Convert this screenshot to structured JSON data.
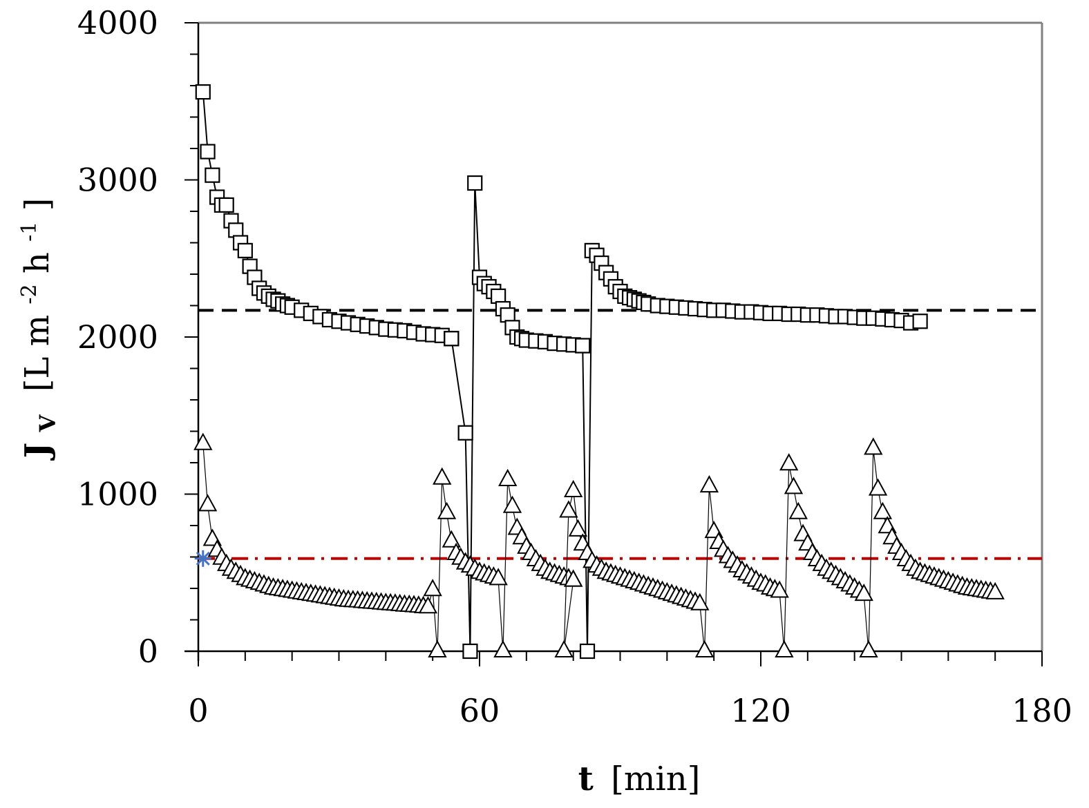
{
  "chart_data": {
    "type": "scatter",
    "title": "",
    "xlabel": {
      "symbol": "t",
      "unit": "[min]"
    },
    "ylabel": {
      "symbol": "J",
      "subscript": "V",
      "unit_open": "[L m",
      "exp1": "-2",
      "unit_mid": " h",
      "exp2": "-1",
      "unit_close": "]"
    },
    "xlim": [
      0,
      180
    ],
    "ylim": [
      0,
      4000
    ],
    "x_ticks": [
      "0",
      "60",
      "120",
      "180"
    ],
    "y_ticks": [
      "0",
      "1000",
      "2000",
      "3000",
      "4000"
    ],
    "x_tick_values": [
      0,
      60,
      120,
      180
    ],
    "y_tick_values": [
      0,
      1000,
      2000,
      3000,
      4000
    ],
    "x_minor_step": 10,
    "y_minor_step": 200,
    "reference_lines": [
      {
        "name": "dashed-line",
        "y": 2170,
        "color": "#000000",
        "style": "dashed"
      },
      {
        "name": "dash-dot-line",
        "y": 590,
        "color": "#c00000",
        "style": "dashdot"
      }
    ],
    "marker_point": {
      "name": "star-marker",
      "x": 1,
      "y": 590,
      "color": "#4472c4"
    },
    "series": [
      {
        "name": "squares",
        "marker": "square",
        "segments": [
          {
            "x": [
              1,
              2,
              3,
              4,
              5,
              6,
              7,
              8,
              9,
              10,
              11,
              12,
              13,
              14,
              15,
              16,
              17,
              18,
              19,
              20,
              22,
              24,
              26,
              28,
              30,
              32,
              34,
              36,
              38,
              40,
              42,
              44,
              46,
              48,
              50,
              52,
              54
            ],
            "y": [
              3560,
              3180,
              3030,
              2890,
              2840,
              2840,
              2740,
              2680,
              2600,
              2550,
              2450,
              2380,
              2310,
              2280,
              2260,
              2240,
              2230,
              2210,
              2200,
              2190,
              2170,
              2150,
              2130,
              2110,
              2100,
              2090,
              2080,
              2070,
              2060,
              2050,
              2045,
              2040,
              2030,
              2020,
              2015,
              2010,
              1990
            ]
          },
          {
            "x": [
              54,
              57,
              58,
              59,
              60,
              61,
              62,
              63,
              64,
              65,
              66,
              67,
              68,
              69,
              70,
              72,
              74,
              76,
              78,
              80,
              82
            ],
            "y": [
              1990,
              1390,
              0,
              2980,
              2380,
              2340,
              2320,
              2290,
              2260,
              2180,
              2140,
              2060,
              2000,
              1990,
              1980,
              1975,
              1970,
              1960,
              1955,
              1950,
              1945
            ]
          },
          {
            "x": [
              82,
              83,
              84,
              85,
              86,
              87,
              88,
              89,
              90,
              91,
              92,
              93,
              94,
              95,
              96,
              98,
              100,
              102,
              104,
              106,
              108,
              110,
              112,
              114,
              116,
              118,
              120,
              122,
              124,
              126,
              128,
              130,
              132,
              134,
              136,
              138,
              140,
              142,
              144,
              146,
              148,
              150,
              152,
              154
            ],
            "y": [
              1945,
              0,
              2550,
              2520,
              2470,
              2410,
              2370,
              2320,
              2290,
              2260,
              2250,
              2240,
              2230,
              2220,
              2210,
              2200,
              2195,
              2190,
              2185,
              2180,
              2175,
              2170,
              2170,
              2165,
              2160,
              2160,
              2155,
              2150,
              2150,
              2145,
              2145,
              2140,
              2140,
              2135,
              2130,
              2130,
              2125,
              2120,
              2120,
              2115,
              2110,
              2105,
              2090,
              2100
            ]
          }
        ]
      },
      {
        "name": "triangles",
        "marker": "triangle",
        "segments": [
          {
            "x": [
              1,
              2,
              3,
              4,
              5,
              6,
              7,
              8,
              9,
              10,
              11,
              12,
              13,
              14,
              15,
              16,
              17,
              18,
              19,
              20,
              21,
              22,
              23,
              24,
              25,
              26,
              27,
              28,
              29,
              30,
              31,
              32,
              33,
              34,
              35,
              36,
              37,
              38,
              39,
              40,
              41,
              42,
              43,
              44,
              45,
              46,
              47,
              48,
              49,
              50,
              51,
              52,
              53,
              54,
              55,
              56,
              57
            ],
            "y": [
              1320,
              930,
              710,
              640,
              590,
              550,
              520,
              500,
              480,
              460,
              450,
              440,
              430,
              420,
              410,
              400,
              395,
              390,
              385,
              380,
              375,
              370,
              365,
              360,
              355,
              350,
              345,
              340,
              335,
              330,
              325,
              322,
              320,
              318,
              315,
              312,
              310,
              308,
              305,
              302,
              300,
              298,
              295,
              292,
              290,
              288,
              285,
              282,
              280,
              390,
              0,
              1100,
              880,
              700,
              620,
              590,
              560
            ]
          },
          {
            "x": [
              57,
              58,
              59,
              60,
              61,
              62,
              63,
              64,
              65,
              66,
              67,
              68,
              69,
              70,
              71,
              72,
              73,
              74,
              75,
              76,
              77,
              78,
              79,
              80
            ],
            "y": [
              560,
              540,
              520,
              500,
              490,
              480,
              470,
              460,
              0,
              1090,
              920,
              780,
              720,
              660,
              620,
              580,
              550,
              520,
              500,
              490,
              480,
              470,
              460,
              450
            ]
          },
          {
            "x": [
              80,
              78,
              79,
              80,
              81,
              82,
              83,
              84,
              85,
              86,
              87,
              88,
              89,
              90,
              91,
              92,
              93,
              94,
              95,
              96,
              97,
              98,
              99,
              100,
              101,
              102,
              103,
              104,
              105,
              106,
              107,
              108,
              109,
              110,
              111,
              112,
              113,
              114
            ],
            "y": [
              450,
              0,
              890,
              1020,
              770,
              680,
              620,
              570,
              540,
              520,
              500,
              490,
              480,
              470,
              460,
              450,
              440,
              430,
              420,
              410,
              400,
              390,
              380,
              370,
              360,
              350,
              340,
              330,
              320,
              310,
              300,
              0,
              1050,
              760,
              690,
              640,
              600,
              570
            ]
          },
          {
            "x": [
              114,
              115,
              116,
              117,
              118,
              119,
              120,
              121,
              122,
              123,
              124,
              125,
              126,
              127,
              128,
              129,
              130,
              131,
              132,
              133,
              134,
              135,
              136,
              137,
              138,
              139,
              140
            ],
            "y": [
              570,
              540,
              510,
              490,
              470,
              450,
              430,
              420,
              400,
              390,
              380,
              0,
              1190,
              1040,
              880,
              740,
              680,
              620,
              580,
              550,
              520,
              500,
              480,
              460,
              440,
              420,
              400
            ]
          },
          {
            "x": [
              140,
              141,
              142,
              143,
              144,
              145,
              146,
              147,
              148,
              149,
              150,
              151,
              152,
              153,
              154,
              155,
              156,
              157,
              158,
              159,
              160,
              161,
              162,
              163,
              164,
              165,
              166,
              167,
              168,
              169,
              170
            ],
            "y": [
              400,
              380,
              360,
              0,
              1290,
              1030,
              880,
              790,
              720,
              660,
              620,
              580,
              550,
              520,
              500,
              490,
              480,
              470,
              460,
              450,
              440,
              430,
              420,
              410,
              400,
              395,
              390,
              385,
              380,
              375,
              370
            ]
          }
        ]
      }
    ]
  }
}
